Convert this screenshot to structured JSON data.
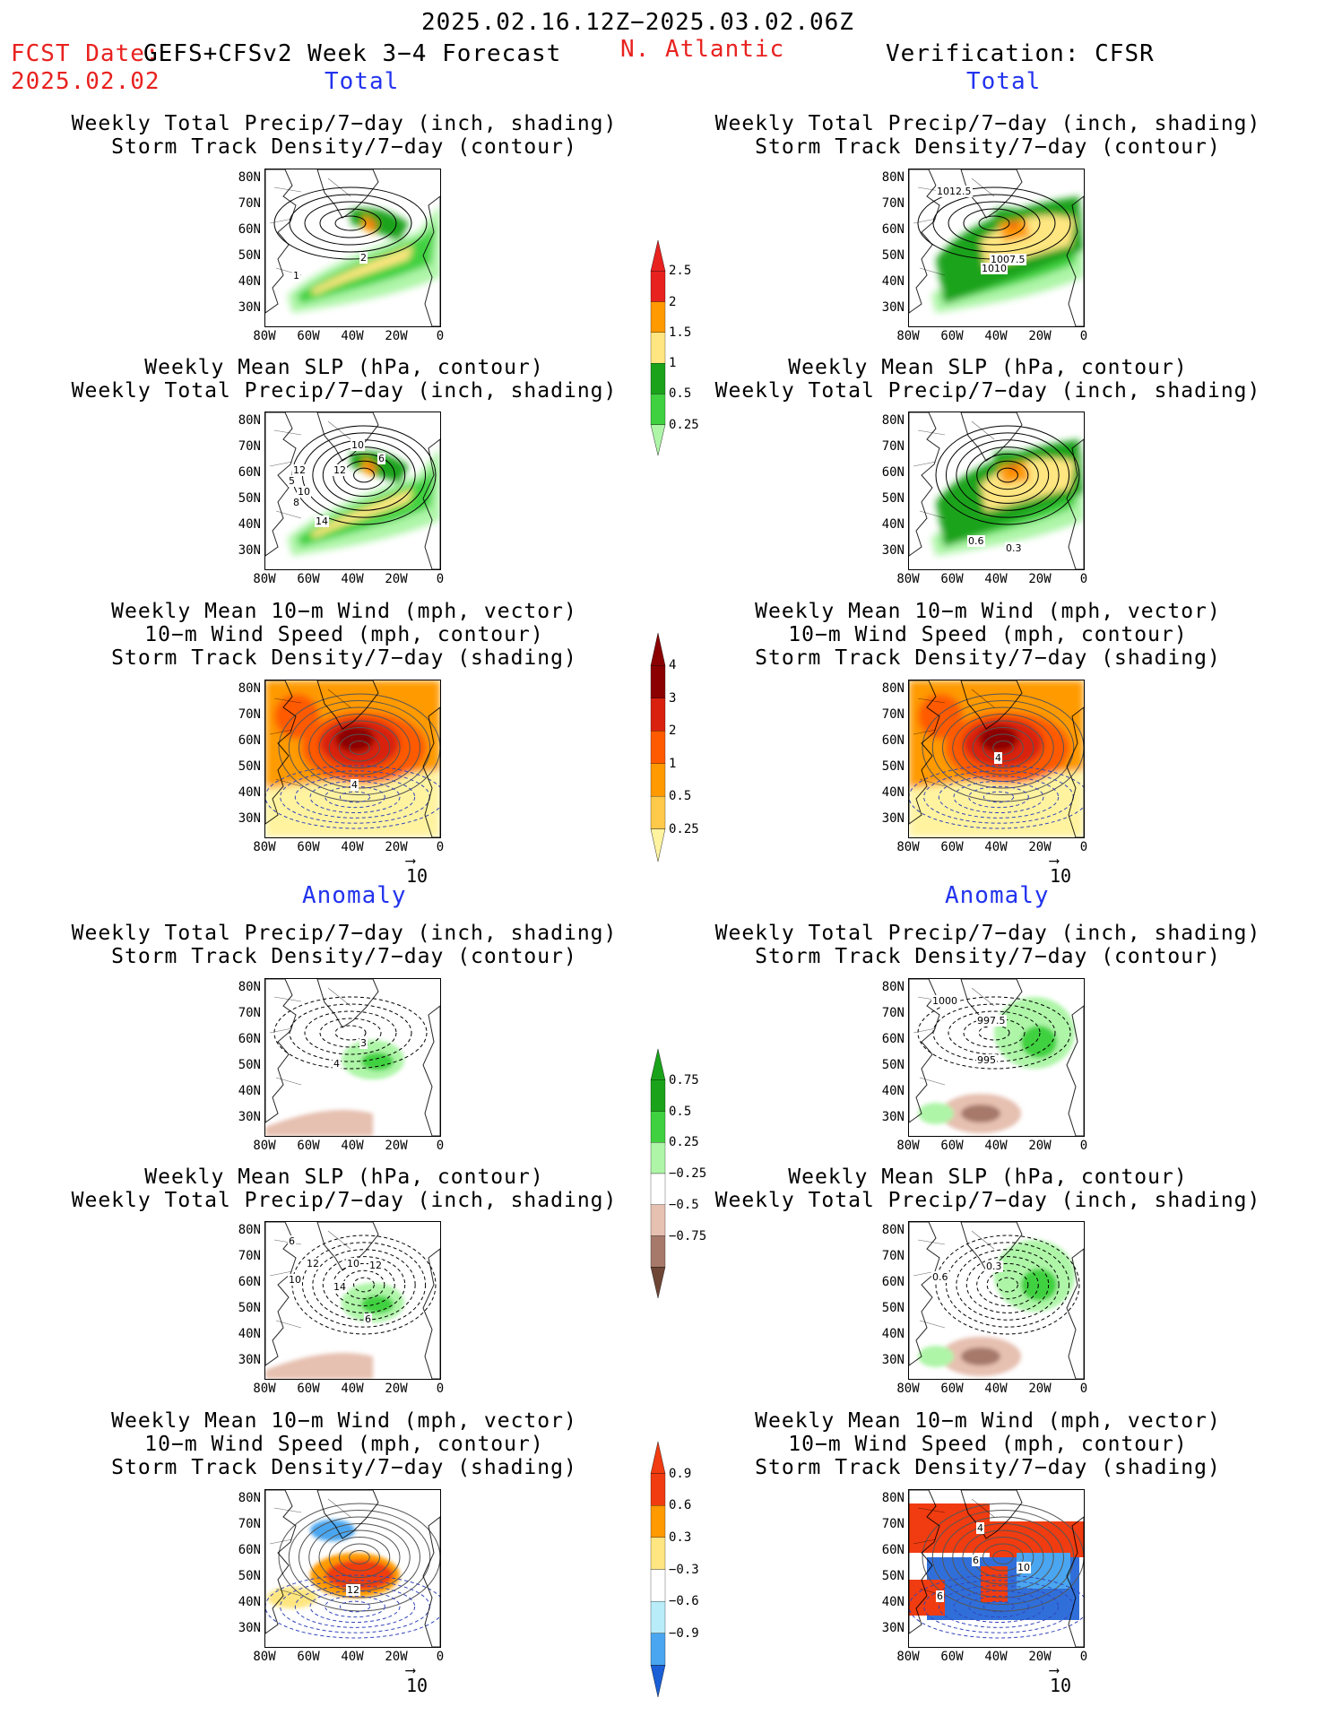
{
  "header": {
    "date_range": "2025.02.16.12Z−2025.03.02.06Z",
    "fcst_label": "FCST Date:",
    "model_label": "GEFS+CFSv2 Week 3−4 Forecast",
    "fcst_date": "2025.02.02",
    "region": "N. Atlantic",
    "verification": "Verification: CFSR"
  },
  "sections": {
    "total": "Total",
    "anomaly": "Anomaly"
  },
  "panel_titles": {
    "precip_track": [
      "Weekly Total Precip/7−day (inch, shading)",
      "Storm Track Density/7−day (contour)"
    ],
    "slp_precip": [
      "Weekly Mean SLP (hPa, contour)",
      "Weekly Total Precip/7−day (inch, shading)"
    ],
    "wind_track": [
      "Weekly Mean 10−m Wind (mph, vector)",
      "10−m Wind Speed (mph, contour)",
      "Storm Track Density/7−day (shading)"
    ]
  },
  "axes": {
    "lat_ticks": [
      "80N",
      "70N",
      "60N",
      "50N",
      "40N",
      "30N"
    ],
    "lon_ticks": [
      "80W",
      "60W",
      "40W",
      "20W",
      "0"
    ]
  },
  "vector_scale": "10",
  "colorbars": {
    "precip_total": {
      "labels": [
        "2.5",
        "2",
        "1.5",
        "1",
        "0.5",
        "0.25"
      ],
      "colors": [
        "#e8221f",
        "#ff9a00",
        "#ffe680",
        "#1aa31a",
        "#3fd13f",
        "#aef5a8"
      ]
    },
    "track_total": {
      "labels": [
        "4",
        "3",
        "2",
        "1",
        "0.5",
        "0.25"
      ],
      "colors": [
        "#8b0000",
        "#d9200f",
        "#ff5a00",
        "#ff9a00",
        "#ffc94a",
        "#fff3a0"
      ]
    },
    "precip_anom": {
      "labels": [
        "0.75",
        "0.5",
        "0.25",
        "−0.25",
        "−0.5",
        "−0.75"
      ],
      "colors": [
        "#1aa31a",
        "#3fd13f",
        "#aef5a8",
        "#ffffff",
        "#e6c0b0",
        "#a6796a",
        "#6e4636"
      ]
    },
    "track_anom": {
      "labels": [
        "0.9",
        "0.6",
        "0.3",
        "−0.3",
        "−0.6",
        "−0.9"
      ],
      "colors": [
        "#f03c10",
        "#ff9a00",
        "#ffe680",
        "#ffffff",
        "#b8ecf8",
        "#4aa6f0",
        "#1a5fd6"
      ]
    }
  },
  "map_labels": {
    "p1": [
      "1",
      "2"
    ],
    "p2": [
      "1012.5",
      "1007.5",
      "1010"
    ],
    "p3": [
      "10",
      "6",
      "12",
      "12",
      "5",
      "10",
      "8",
      "14"
    ],
    "p4": [
      "0.6",
      "0.3"
    ],
    "p5": [
      "4"
    ],
    "p6": [
      "4"
    ],
    "p7": [
      "3",
      "4"
    ],
    "p8": [
      "1000",
      "997.5",
      "995"
    ],
    "p9": [
      "6",
      "12",
      "10",
      "12",
      "10",
      "14",
      "6"
    ],
    "p10": [
      "0.6",
      "0.3"
    ],
    "p11": [
      "12"
    ],
    "p12": [
      "4",
      "6",
      "10",
      "6"
    ]
  }
}
